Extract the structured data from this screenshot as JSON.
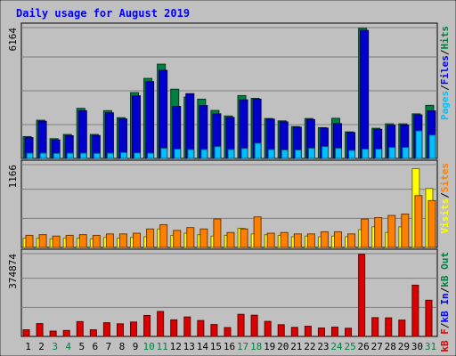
{
  "chart_data": [
    {
      "type": "bar",
      "title": "Daily usage for August 2019",
      "categories": [
        "1",
        "2",
        "3",
        "4",
        "5",
        "6",
        "7",
        "8",
        "9",
        "10",
        "11",
        "12",
        "13",
        "14",
        "15",
        "16",
        "17",
        "18",
        "19",
        "20",
        "21",
        "22",
        "23",
        "24",
        "25",
        "26",
        "27",
        "28",
        "29",
        "30",
        "31"
      ],
      "weekend_days": [
        "3",
        "4",
        "10",
        "11",
        "17",
        "18",
        "24",
        "25",
        "31"
      ],
      "ymax_label": "6164",
      "ylim": [
        0,
        6164
      ],
      "side_label": [
        "Pages",
        "/",
        "Files",
        "/",
        "Hits"
      ],
      "series": [
        {
          "name": "Hits",
          "color": "#008040",
          "values": [
            1030,
            1800,
            930,
            1130,
            2360,
            1130,
            2250,
            1920,
            3100,
            3770,
            4440,
            3260,
            2890,
            2790,
            2260,
            2000,
            2960,
            2830,
            1880,
            1770,
            1500,
            1880,
            1450,
            1890,
            1250,
            6130,
            1420,
            1630,
            1630,
            2100,
            2500
          ]
        },
        {
          "name": "Files",
          "color": "#0000cc",
          "values": [
            980,
            1750,
            870,
            1070,
            2250,
            1080,
            2150,
            1860,
            2950,
            3620,
            4150,
            2450,
            3050,
            2490,
            2100,
            1930,
            2760,
            2790,
            1850,
            1720,
            1470,
            1830,
            1430,
            1640,
            1220,
            6030,
            1370,
            1560,
            1570,
            2050,
            2240
          ]
        },
        {
          "name": "Pages",
          "color": "#00c0ff",
          "values": [
            250,
            250,
            240,
            250,
            250,
            240,
            250,
            280,
            260,
            250,
            480,
            440,
            420,
            420,
            560,
            420,
            470,
            720,
            420,
            400,
            400,
            480,
            560,
            480,
            380,
            440,
            440,
            520,
            520,
            1300,
            1100
          ]
        }
      ]
    },
    {
      "type": "bar",
      "ymax_label": "1166",
      "ylim": [
        0,
        1166
      ],
      "side_label": [
        "Visits",
        "/",
        "Sites"
      ],
      "series": [
        {
          "name": "Visits",
          "color": "#ffff00",
          "values": [
            130,
            130,
            120,
            130,
            130,
            120,
            140,
            130,
            140,
            150,
            260,
            170,
            200,
            180,
            160,
            170,
            270,
            190,
            180,
            170,
            150,
            160,
            150,
            160,
            150,
            250,
            290,
            210,
            290,
            1110,
            830
          ]
        },
        {
          "name": "Sites",
          "color": "#ff8000",
          "values": [
            170,
            180,
            160,
            170,
            180,
            170,
            190,
            190,
            200,
            260,
            320,
            240,
            280,
            260,
            400,
            210,
            260,
            430,
            200,
            210,
            190,
            190,
            220,
            220,
            190,
            400,
            420,
            450,
            470,
            730,
            660
          ]
        }
      ]
    },
    {
      "type": "bar",
      "ymax_label": "374874",
      "ylim": [
        0,
        374874
      ],
      "side_label": [
        "kB F",
        "/",
        "kB In",
        "/",
        "kB Out"
      ],
      "series": [
        {
          "name": "kB F",
          "color": "#dd0000",
          "values": [
            30000,
            58000,
            24000,
            27000,
            67000,
            30000,
            62000,
            57000,
            65000,
            95000,
            113000,
            75000,
            88000,
            72000,
            54000,
            40000,
            100000,
            96000,
            68000,
            53000,
            41000,
            46000,
            38000,
            42000,
            37000,
            372000,
            85000,
            84000,
            74000,
            232000,
            164000
          ]
        }
      ]
    }
  ]
}
